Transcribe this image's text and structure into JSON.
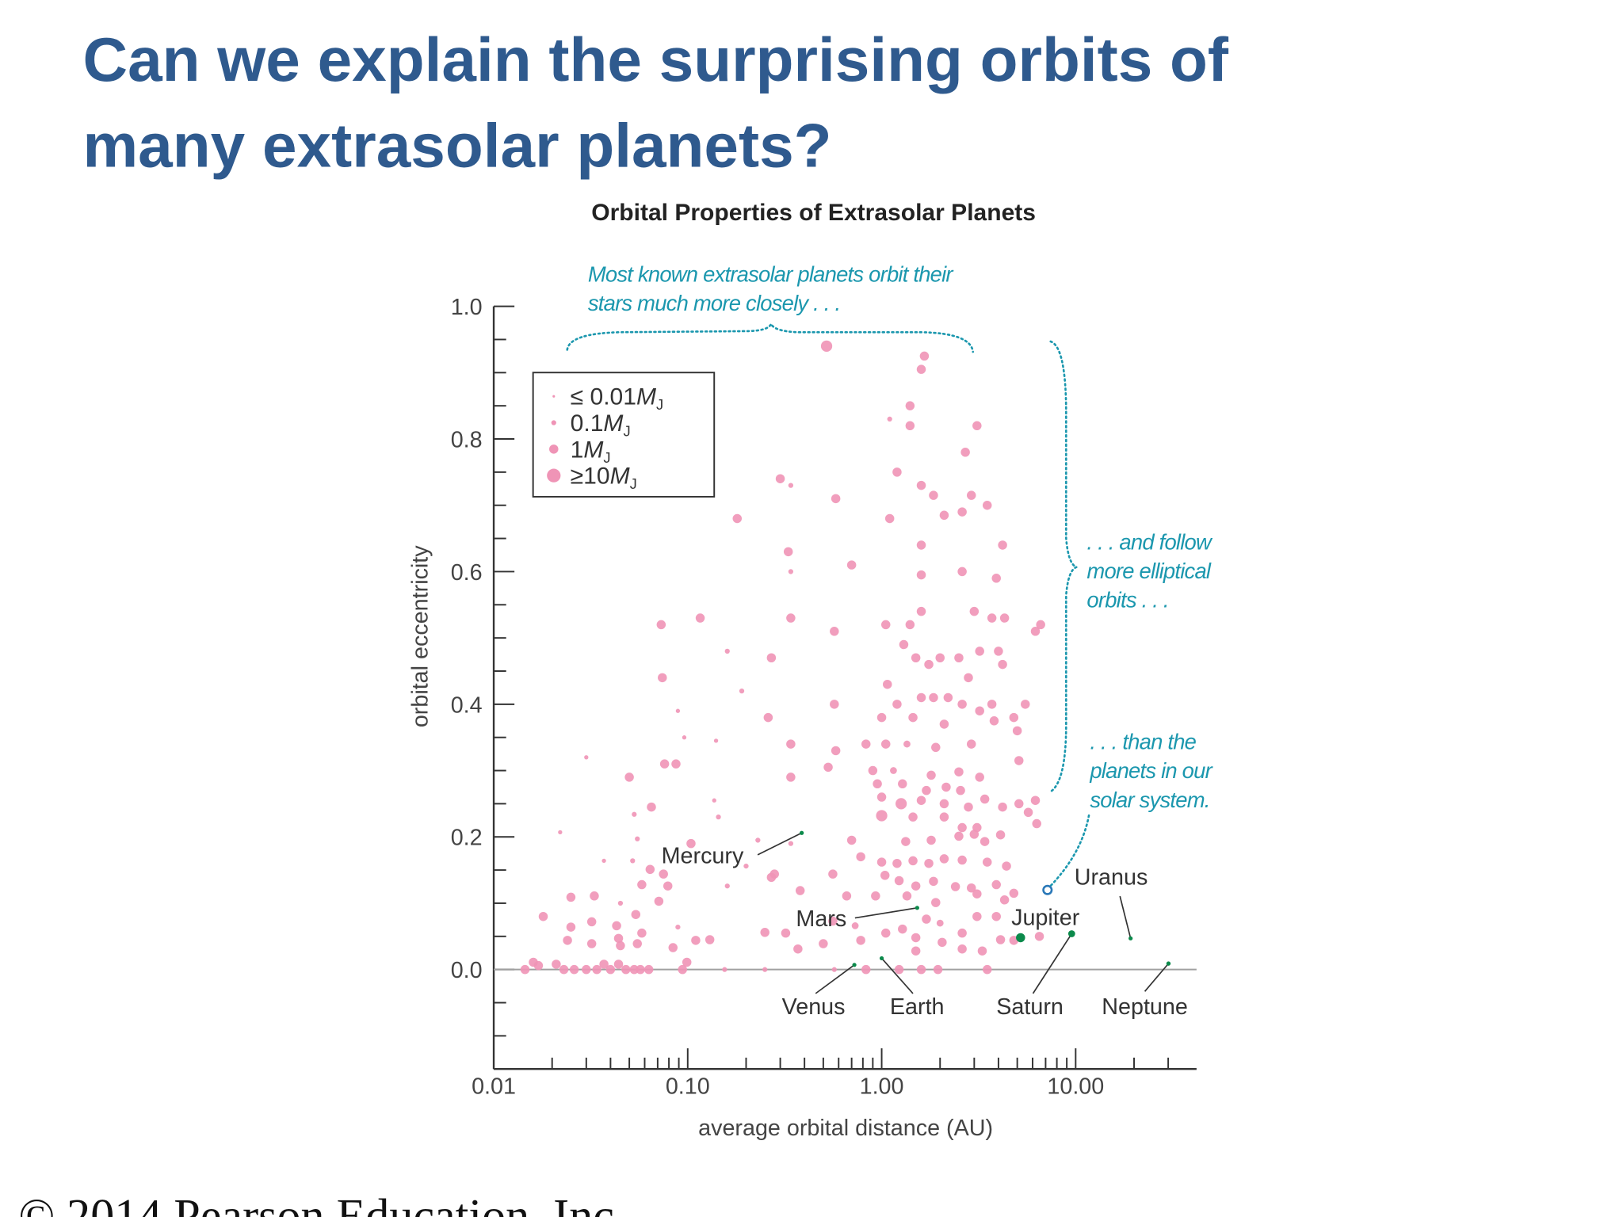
{
  "slide": {
    "title_lines": [
      "Can we explain the surprising orbits of",
      "many extrasolar planets?"
    ],
    "footer": "© 2014 Pearson Education, Inc."
  },
  "chart_data": {
    "type": "scatter",
    "title": "Orbital Properties of Extrasolar Planets",
    "x_label": "average orbital distance (AU)",
    "y_label": "orbital eccentricity",
    "xlog": true,
    "xlim": [
      0.01,
      42
    ],
    "ylim": [
      -0.15,
      1.0
    ],
    "xticks": [
      {
        "value": 0.01,
        "label": "0.01"
      },
      {
        "value": 0.1,
        "label": "0.10"
      },
      {
        "value": 1,
        "label": "1.00"
      },
      {
        "value": 10,
        "label": "10.00"
      }
    ],
    "xminorticks": [
      0.02,
      0.03,
      0.04,
      0.05,
      0.06,
      0.07,
      0.08,
      0.09,
      0.2,
      0.3,
      0.4,
      0.5,
      0.6,
      0.7,
      0.8,
      0.9,
      2,
      3,
      4,
      5,
      6,
      7,
      8,
      9,
      20,
      30
    ],
    "yticks": [
      {
        "value": 0,
        "label": "0.0"
      },
      {
        "value": 0.2,
        "label": "0.2"
      },
      {
        "value": 0.4,
        "label": "0.4"
      },
      {
        "value": 0.6,
        "label": "0.6"
      },
      {
        "value": 0.8,
        "label": "0.8"
      },
      {
        "value": 1.0,
        "label": "1.0"
      }
    ],
    "yminorticks": [
      -0.1,
      -0.05,
      0.05,
      0.1,
      0.15,
      0.25,
      0.3,
      0.35,
      0.45,
      0.5,
      0.55,
      0.65,
      0.7,
      0.75,
      0.85,
      0.9,
      0.95
    ],
    "grid": false,
    "zero_line": true,
    "color": "#ef94b6",
    "x": [
      0.52,
      1.66,
      1.6,
      1.4,
      1.1,
      1.4,
      3.1,
      2.7,
      0.3,
      0.34,
      0.58,
      0.18,
      1.2,
      1.6,
      1.85,
      2.9,
      2.6,
      2.1,
      3.5,
      1.1,
      0.33,
      0.34,
      0.7,
      1.6,
      4.2,
      1.6,
      2.6,
      3.9,
      0.073,
      0.116,
      0.34,
      0.57,
      1.05,
      1.4,
      1.6,
      3.0,
      3.7,
      4.3,
      6.6,
      6.2,
      0.16,
      0.27,
      1.3,
      1.5,
      1.75,
      2.0,
      2.5,
      3.2,
      4.0,
      4.2,
      0.074,
      0.19,
      0.089,
      0.57,
      1.07,
      1.85,
      2.2,
      2.8,
      3.7,
      5.5,
      4.8,
      3.2,
      2.6,
      1.6,
      1.2,
      0.26,
      1.0,
      1.45,
      2.1,
      3.8,
      5.0,
      0.096,
      0.14,
      0.34,
      0.58,
      0.83,
      1.05,
      1.35,
      1.9,
      2.9,
      0.03,
      0.076,
      0.087,
      0.53,
      0.9,
      1.15,
      1.8,
      2.5,
      3.2,
      5.1,
      0.05,
      0.34,
      0.95,
      1.28,
      1.7,
      2.15,
      2.55,
      3.4,
      5.1,
      6.2,
      0.065,
      0.137,
      1.0,
      1.26,
      1.6,
      2.1,
      2.8,
      4.2,
      0.053,
      0.144,
      1.0,
      1.45,
      2.1,
      5.7,
      6.3,
      3.1,
      4.1,
      2.6,
      0.022,
      0.055,
      0.104,
      0.23,
      0.34,
      0.7,
      1.33,
      1.8,
      2.5,
      3.0,
      3.4,
      0.037,
      0.052,
      0.064,
      0.075,
      0.2,
      0.28,
      0.78,
      1.0,
      1.2,
      1.45,
      1.75,
      2.1,
      2.6,
      3.5,
      4.4,
      0.025,
      0.033,
      0.058,
      0.079,
      0.16,
      0.27,
      0.56,
      1.04,
      1.23,
      1.5,
      1.85,
      2.4,
      2.9,
      3.9,
      4.8,
      0.018,
      0.045,
      0.071,
      0.054,
      0.38,
      0.66,
      0.93,
      1.35,
      1.9,
      3.1,
      4.3,
      3.1,
      1.7,
      2.0,
      3.9,
      0.025,
      0.032,
      0.043,
      0.044,
      0.058,
      0.089,
      0.13,
      0.32,
      0.56,
      0.73,
      1.05,
      1.28,
      1.5,
      2.6,
      4.1,
      6.5,
      0.016,
      0.024,
      0.032,
      0.045,
      0.055,
      0.084,
      0.11,
      0.25,
      0.37,
      0.5,
      0.78,
      1.5,
      2.05,
      2.6,
      3.3,
      4.8,
      0.0145,
      0.017,
      0.021,
      0.023,
      0.026,
      0.03,
      0.034,
      0.037,
      0.04,
      0.044,
      0.048,
      0.053,
      0.057,
      0.063,
      0.094,
      0.099,
      0.155,
      0.25,
      0.57,
      0.83,
      1.23,
      1.6,
      1.95,
      3.5
    ],
    "values": [
      0.94,
      0.925,
      0.905,
      0.85,
      0.83,
      0.82,
      0.82,
      0.78,
      0.74,
      0.73,
      0.71,
      0.68,
      0.75,
      0.73,
      0.715,
      0.715,
      0.69,
      0.685,
      0.7,
      0.68,
      0.63,
      0.6,
      0.61,
      0.64,
      0.64,
      0.595,
      0.6,
      0.59,
      0.52,
      0.53,
      0.53,
      0.51,
      0.52,
      0.52,
      0.54,
      0.54,
      0.53,
      0.53,
      0.52,
      0.51,
      0.48,
      0.47,
      0.49,
      0.47,
      0.46,
      0.47,
      0.47,
      0.48,
      0.48,
      0.46,
      0.44,
      0.42,
      0.39,
      0.4,
      0.43,
      0.41,
      0.41,
      0.44,
      0.4,
      0.4,
      0.38,
      0.39,
      0.4,
      0.41,
      0.4,
      0.38,
      0.38,
      0.38,
      0.37,
      0.375,
      0.36,
      0.35,
      0.345,
      0.34,
      0.33,
      0.34,
      0.34,
      0.34,
      0.335,
      0.34,
      0.32,
      0.31,
      0.31,
      0.305,
      0.3,
      0.3,
      0.293,
      0.298,
      0.29,
      0.315,
      0.29,
      0.29,
      0.28,
      0.28,
      0.27,
      0.275,
      0.27,
      0.257,
      0.25,
      0.255,
      0.245,
      0.255,
      0.26,
      0.25,
      0.255,
      0.25,
      0.245,
      0.245,
      0.234,
      0.23,
      0.232,
      0.23,
      0.23,
      0.237,
      0.22,
      0.214,
      0.203,
      0.214,
      0.207,
      0.197,
      0.19,
      0.195,
      0.19,
      0.195,
      0.193,
      0.195,
      0.201,
      0.204,
      0.193,
      0.164,
      0.164,
      0.151,
      0.144,
      0.156,
      0.144,
      0.17,
      0.162,
      0.16,
      0.164,
      0.16,
      0.167,
      0.165,
      0.162,
      0.156,
      0.109,
      0.111,
      0.128,
      0.126,
      0.126,
      0.139,
      0.144,
      0.142,
      0.134,
      0.126,
      0.133,
      0.125,
      0.123,
      0.128,
      0.115,
      0.08,
      0.1,
      0.103,
      0.083,
      0.119,
      0.111,
      0.111,
      0.111,
      0.101,
      0.114,
      0.105,
      0.08,
      0.076,
      0.07,
      0.08,
      0.064,
      0.072,
      0.066,
      0.047,
      0.055,
      0.064,
      0.045,
      0.055,
      0.073,
      0.066,
      0.055,
      0.061,
      0.048,
      0.055,
      0.045,
      0.05,
      0.011,
      0.044,
      0.039,
      0.036,
      0.039,
      0.033,
      0.044,
      0.056,
      0.031,
      0.039,
      0.044,
      0.028,
      0.041,
      0.031,
      0.028,
      0.044,
      0,
      0.006,
      0.008,
      0,
      0,
      0,
      0,
      0.008,
      0,
      0.008,
      0,
      0,
      0,
      0,
      0,
      0.011,
      0,
      0,
      0,
      0,
      0,
      0,
      0,
      0
    ],
    "mass": [
      3,
      1,
      1,
      1,
      0.1,
      1,
      1,
      1,
      1,
      0.1,
      1,
      1,
      1,
      1,
      1,
      1,
      1,
      1,
      1,
      1,
      1,
      0.1,
      1,
      1,
      1,
      1,
      1,
      1,
      1,
      1,
      1,
      1,
      1,
      1,
      1,
      1,
      1,
      1,
      1,
      1,
      0.1,
      1,
      1,
      1,
      1,
      1,
      1,
      1,
      1,
      1,
      1,
      0.1,
      0.05,
      1,
      1,
      1,
      1,
      1,
      1,
      1,
      1,
      1,
      1,
      1,
      1,
      1,
      1,
      1,
      1,
      1,
      1,
      0.05,
      0.05,
      1,
      1,
      1,
      1,
      0.3,
      1,
      1,
      0.05,
      1,
      1,
      1,
      1,
      0.3,
      1,
      1,
      1,
      1,
      1,
      1,
      1,
      1,
      1,
      1,
      1,
      1,
      1,
      1,
      1,
      0.05,
      1,
      3,
      1,
      1,
      1,
      1,
      0.1,
      0.1,
      3,
      1,
      1,
      1,
      1,
      1,
      1,
      1,
      0.05,
      0.1,
      1,
      0.1,
      0.1,
      1,
      1,
      1,
      1,
      1,
      1,
      0.05,
      0.1,
      1,
      1,
      0.1,
      1,
      1,
      1,
      1,
      1,
      1,
      1,
      1,
      1,
      1,
      1,
      1,
      1,
      1,
      0.1,
      1,
      1,
      1,
      1,
      1,
      1,
      1,
      1,
      1,
      1,
      1,
      0.1,
      1,
      1,
      1,
      1,
      1,
      1,
      1,
      1,
      1,
      1,
      1,
      0.3,
      1,
      1,
      1,
      1,
      1,
      1,
      0.1,
      1,
      1,
      1,
      0.3,
      1,
      1,
      1,
      1,
      1,
      1,
      1,
      1,
      1,
      1,
      1,
      1,
      1,
      1,
      1,
      1,
      1,
      1,
      1,
      1,
      1,
      1,
      1,
      1,
      1,
      1,
      1,
      1,
      1,
      1,
      1,
      1,
      1,
      1,
      1,
      1,
      1,
      1,
      0.1,
      0.1,
      0.1,
      1,
      1,
      1,
      1,
      1
    ],
    "legend": {
      "position": "upper left",
      "entries": [
        {
          "prefix": "≤ 0.01",
          "symbol": "M",
          "subscript": "J",
          "mass": 0.01
        },
        {
          "prefix": "0.1",
          "symbol": "M",
          "subscript": "J",
          "mass": 0.1
        },
        {
          "prefix": "1",
          "symbol": "M",
          "subscript": "J",
          "mass": 1
        },
        {
          "prefix": "≥10",
          "symbol": "M",
          "subscript": "J",
          "mass": 10
        }
      ]
    },
    "solar_system": {
      "color": "#0b8a4b",
      "labels": [
        "Mercury",
        "Venus",
        "Earth",
        "Mars",
        "Jupiter",
        "Saturn",
        "Uranus",
        "Neptune"
      ],
      "x": [
        0.387,
        0.723,
        1.0,
        1.524,
        5.2,
        9.54,
        19.2,
        30.1
      ],
      "values": [
        0.206,
        0.007,
        0.017,
        0.093,
        0.048,
        0.054,
        0.047,
        0.009
      ],
      "mass": [
        0.00017,
        0.0026,
        0.0031,
        0.00034,
        1,
        0.3,
        0.046,
        0.054
      ]
    },
    "annotations": [
      {
        "lines": [
          "Most known extrasolar planets orbit their",
          "stars much more closely . . ."
        ]
      },
      {
        "lines": [
          ". . . and follow",
          "more elliptical",
          "orbits . . ."
        ]
      },
      {
        "lines": [
          ". . . than the",
          "planets in our",
          "solar system."
        ]
      }
    ]
  }
}
